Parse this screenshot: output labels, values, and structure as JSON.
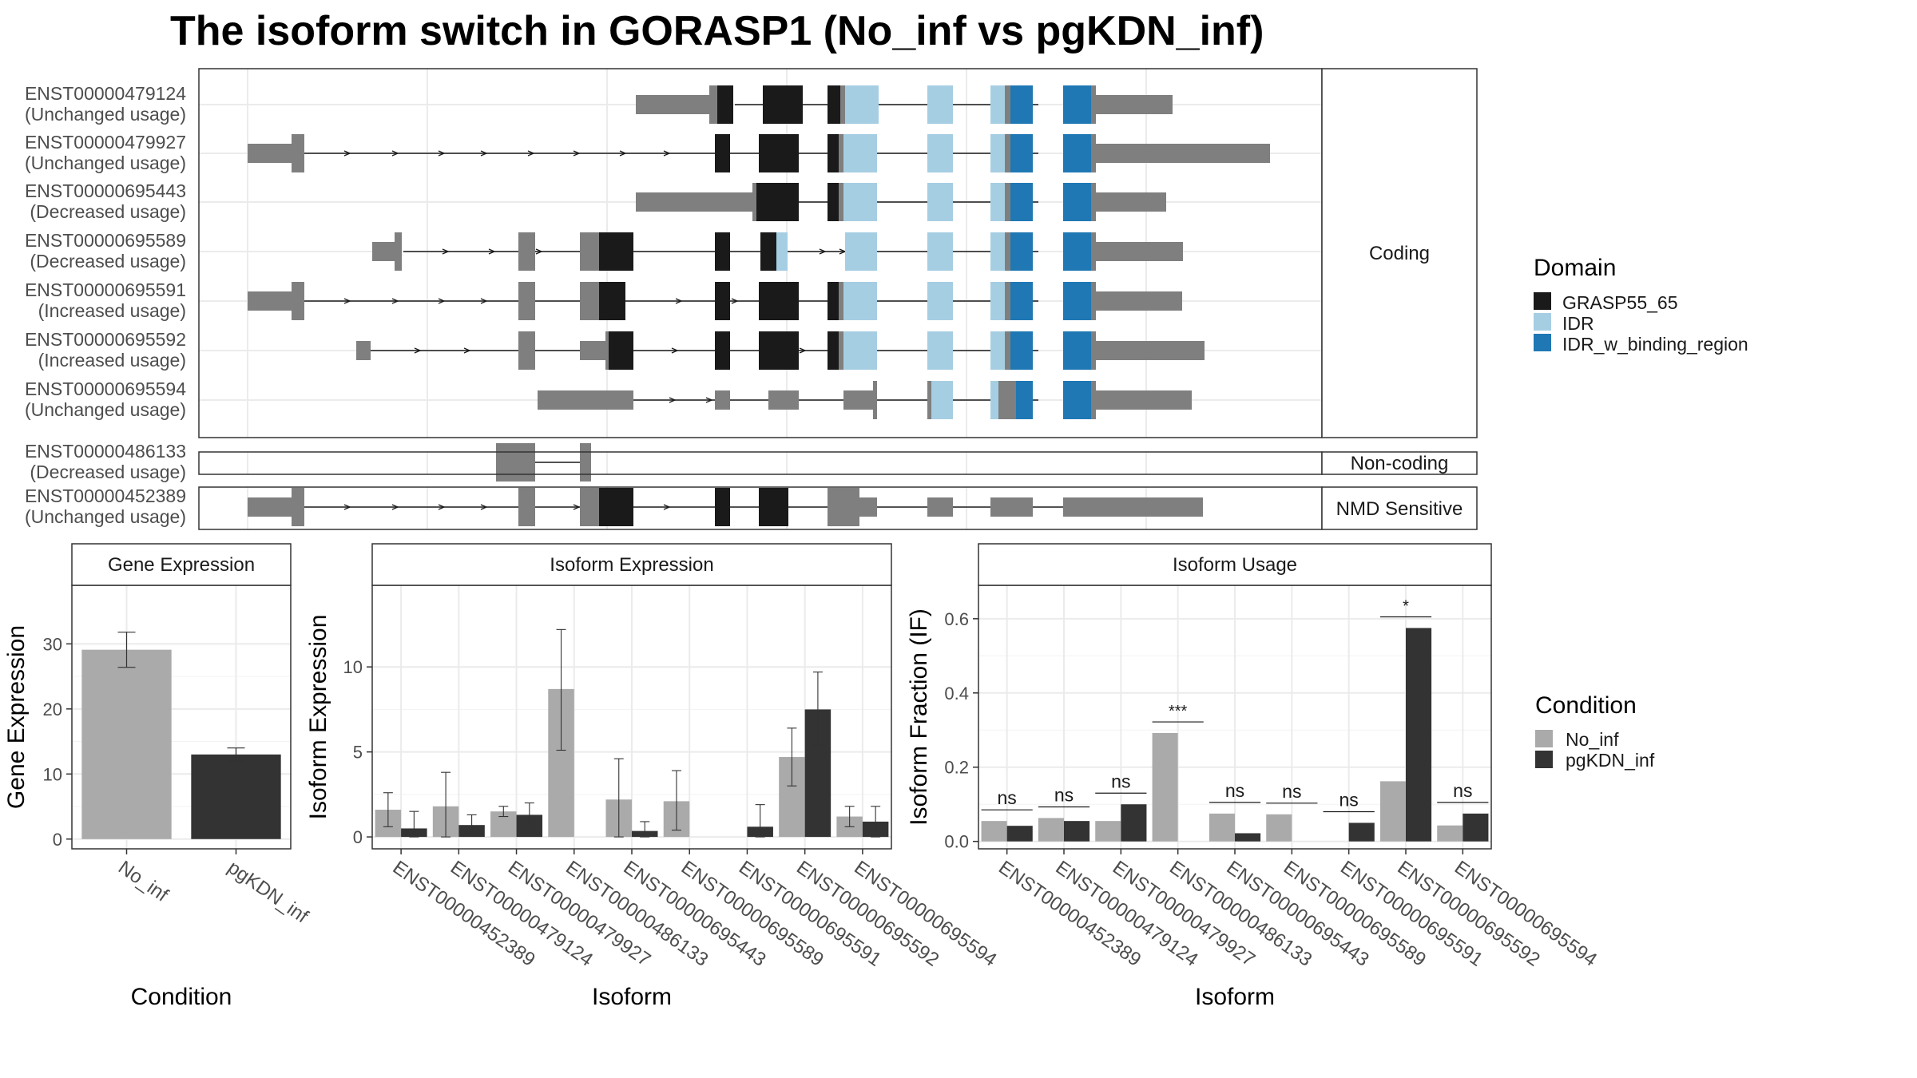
{
  "title": "The isoform switch in GORASP1 (No_inf vs pgKDN_inf)",
  "colors": {
    "exon": "#7f7f7f",
    "GRASP55_65": "#1a1a1a",
    "IDR": "#a6cee3",
    "IDR_w_binding_region": "#1f78b4",
    "No_inf": "#aaaaaa",
    "pgKDN_inf": "#333333",
    "grid": "#ebebeb",
    "panel_border": "#333333"
  },
  "structure": {
    "coding_label": "Coding",
    "noncoding_label": "Non-coding",
    "nmd_label": "NMD Sensitive",
    "coding_isoforms": [
      {
        "id": "ENST00000479124",
        "usage": "(Unchanged usage)"
      },
      {
        "id": "ENST00000479927",
        "usage": "(Unchanged usage)"
      },
      {
        "id": "ENST00000695443",
        "usage": "(Decreased usage)"
      },
      {
        "id": "ENST00000695589",
        "usage": "(Decreased usage)"
      },
      {
        "id": "ENST00000695591",
        "usage": "(Increased usage)"
      },
      {
        "id": "ENST00000695592",
        "usage": "(Increased usage)"
      },
      {
        "id": "ENST00000695594",
        "usage": "(Unchanged usage)"
      }
    ],
    "noncoding_isoforms": [
      {
        "id": "ENST00000486133",
        "usage": "(Decreased usage)"
      }
    ],
    "nmd_isoforms": [
      {
        "id": "ENST00000452389",
        "usage": "(Unchanged usage)"
      }
    ]
  },
  "domain_legend": {
    "title": "Domain",
    "items": [
      {
        "name": "GRASP55_65",
        "color": "#1a1a1a"
      },
      {
        "name": "IDR",
        "color": "#a6cee3"
      },
      {
        "name": "IDR_w_binding_region",
        "color": "#1f78b4"
      }
    ]
  },
  "condition_legend": {
    "title": "Condition",
    "items": [
      {
        "name": "No_inf",
        "color": "#aaaaaa"
      },
      {
        "name": "pgKDN_inf",
        "color": "#333333"
      }
    ]
  },
  "chart_data": [
    {
      "type": "bar",
      "title": "Gene Expression",
      "xlabel": "Condition",
      "ylabel": "Gene Expression",
      "categories": [
        "No_inf",
        "pgKDN_inf"
      ],
      "values": [
        29.1,
        13.0
      ],
      "error_low": [
        26.4,
        12.0
      ],
      "error_high": [
        31.8,
        14.0
      ],
      "ylim": [
        -1.5,
        39
      ],
      "yticks": [
        0,
        10,
        20,
        30
      ]
    },
    {
      "type": "bar",
      "title": "Isoform Expression",
      "xlabel": "Isoform",
      "ylabel": "Isoform Expression",
      "categories": [
        "ENST00000452389",
        "ENST00000479124",
        "ENST00000479927",
        "ENST00000486133",
        "ENST00000695443",
        "ENST00000695589",
        "ENST00000695591",
        "ENST00000695592",
        "ENST00000695594"
      ],
      "series": [
        {
          "name": "No_inf",
          "values": [
            1.6,
            1.8,
            1.5,
            8.7,
            2.2,
            2.1,
            0,
            4.7,
            1.2
          ],
          "err_low": [
            0.6,
            0,
            1.2,
            5.1,
            0,
            0.4,
            0,
            3.0,
            0.6
          ],
          "err_high": [
            2.6,
            3.8,
            1.8,
            12.2,
            4.6,
            3.9,
            0,
            6.4,
            1.8
          ]
        },
        {
          "name": "pgKDN_inf",
          "values": [
            0.5,
            0.7,
            1.3,
            0,
            0.35,
            0,
            0.6,
            7.5,
            0.9
          ],
          "err_low": [
            0,
            0.2,
            0.5,
            0,
            0,
            0,
            0,
            5.4,
            0
          ],
          "err_high": [
            1.5,
            1.3,
            2.0,
            0,
            0.9,
            0,
            1.9,
            9.7,
            1.8
          ]
        }
      ],
      "ylim": [
        -0.7,
        14.8
      ],
      "yticks": [
        0,
        5,
        10
      ]
    },
    {
      "type": "bar",
      "title": "Isoform Usage",
      "xlabel": "Isoform",
      "ylabel": "Isoform Fraction (IF)",
      "categories": [
        "ENST00000452389",
        "ENST00000479124",
        "ENST00000479927",
        "ENST00000486133",
        "ENST00000695443",
        "ENST00000695589",
        "ENST00000695591",
        "ENST00000695592",
        "ENST00000695594"
      ],
      "series": [
        {
          "name": "No_inf",
          "values": [
            0.055,
            0.063,
            0.055,
            0.292,
            0.075,
            0.073,
            0,
            0.162,
            0.043
          ]
        },
        {
          "name": "pgKDN_inf",
          "values": [
            0.042,
            0.055,
            0.1,
            0,
            0.022,
            0,
            0.05,
            0.575,
            0.075
          ]
        }
      ],
      "significance": [
        "ns",
        "ns",
        "ns",
        "***",
        "ns",
        "ns",
        "ns",
        "*",
        "ns"
      ],
      "ylim": [
        -0.02,
        0.69
      ],
      "yticks": [
        0.0,
        0.2,
        0.4,
        0.6
      ]
    }
  ]
}
